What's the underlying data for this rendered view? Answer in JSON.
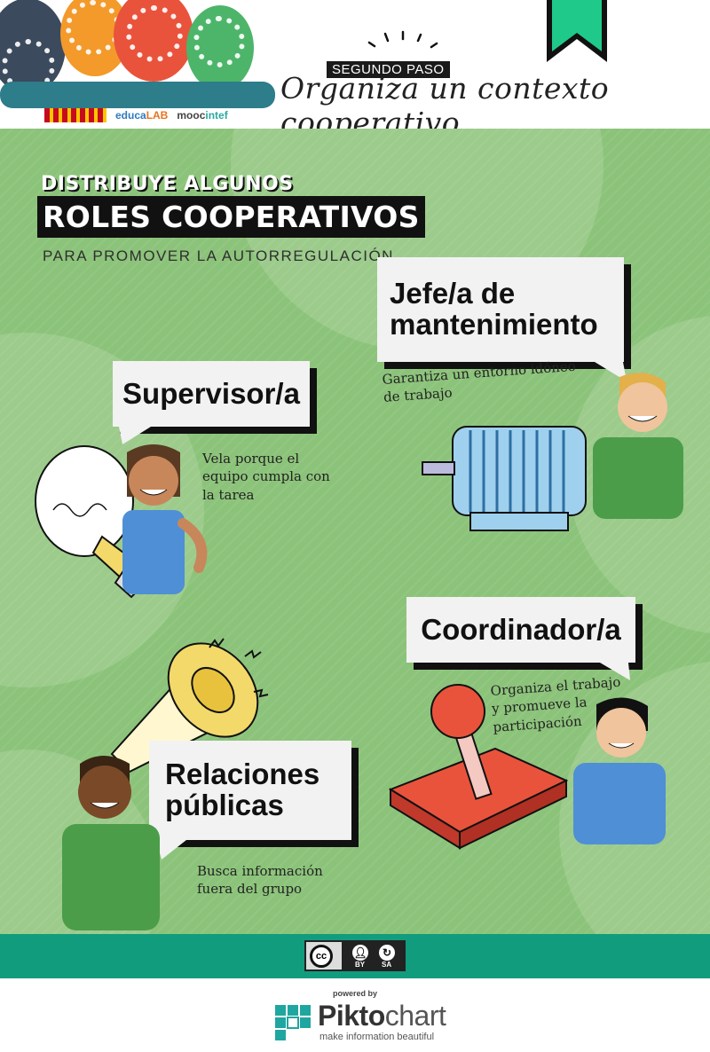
{
  "header": {
    "step_label": "SEGUNDO PASO",
    "title": "Organiza un contexto cooperativo",
    "logos": {
      "educa": "educa",
      "educa_accent": "LAB",
      "mooc": "mooc",
      "mooc_accent": "intef"
    }
  },
  "main": {
    "heading_small": "DISTRIBUYE ALGUNOS",
    "heading_big": "ROLES COOPERATIVOS",
    "subheading": "PARA PROMOVER LA AUTORREGULACIÓN",
    "roles": [
      {
        "title": "Supervisor/a",
        "description_lines": [
          "Vela porque el",
          "equipo cumpla con",
          "la tarea"
        ]
      },
      {
        "title_lines": [
          "Jefe/a de",
          "mantenimiento"
        ],
        "description_lines": [
          "Garantiza un entorno idóneo",
          "de trabajo"
        ]
      },
      {
        "title": "Coordinador/a",
        "description_lines": [
          "Organiza el trabajo",
          "y promueve la",
          "participación"
        ]
      },
      {
        "title_lines": [
          "Relaciones",
          "públicas"
        ],
        "description_lines": [
          "Busca información",
          "fuera del grupo"
        ]
      }
    ]
  },
  "footer": {
    "license": {
      "cc": "cc",
      "by": "BY",
      "sa": "SA"
    },
    "powered_by": "powered by",
    "brand": "Pikto",
    "brand_suffix": "chart",
    "tagline": "make information beautiful"
  },
  "colors": {
    "panel_green": "#8cc37a",
    "license_bar": "#129c7e",
    "bookmark": "#1fc98a",
    "bubble": "#f2f2f2"
  }
}
